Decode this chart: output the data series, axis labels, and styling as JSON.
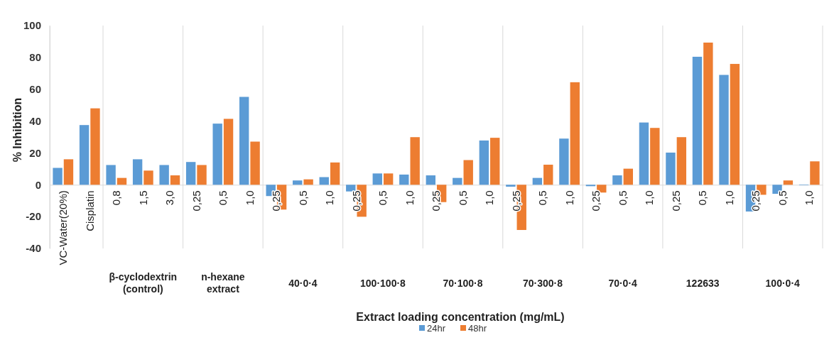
{
  "chart_data": {
    "type": "bar",
    "ylabel": "% Inhibition",
    "xlabel": "Extract loading concentration (mg/mL)",
    "categories": [
      "VC-Water(20%)",
      "Cisplatin",
      "0,8",
      "1,5",
      "3,0",
      "0,25",
      "0,5",
      "1,0",
      "0,25",
      "0,5",
      "1,0",
      "0,25",
      "0,5",
      "1,0",
      "0,25",
      "0,5",
      "1,0",
      "0,25",
      "0,5",
      "1,0",
      "0,25",
      "0,5",
      "1,0",
      "0,25",
      "0,5",
      "1,0",
      "0,25",
      "0,5",
      "1,0"
    ],
    "series": [
      {
        "name": "24hr",
        "color": "#5b9bd5",
        "values": [
          10.6,
          37.5,
          12.4,
          16,
          12.4,
          14.3,
          38.4,
          55.2,
          -7.1,
          2.7,
          4.8,
          -4.2,
          7.1,
          6.4,
          5.9,
          4.3,
          27.8,
          -1.2,
          4.3,
          29,
          -0.9,
          5.9,
          39.1,
          20.2,
          80.4,
          69,
          -16.8,
          -5.7,
          -0.3
        ]
      },
      {
        "name": "48hr",
        "color": "#ed7d31",
        "values": [
          16,
          48,
          4.3,
          8.9,
          5.9,
          12.4,
          41.4,
          27.1,
          -15.6,
          3.4,
          14,
          -20.1,
          7.1,
          29.9,
          -10.9,
          15.5,
          29.5,
          -28.4,
          12.6,
          64.4,
          -4.9,
          10.1,
          35.7,
          29.9,
          89.3,
          75.9,
          -6.3,
          2.7,
          14.7
        ]
      }
    ],
    "annotations": [
      "β-cyclodextrin (control)",
      "n-hexane extract",
      "40·0·4",
      "100·100·8",
      "70·100·8",
      "70·300·8",
      "70·0·4",
      "122633",
      "100·0·4"
    ],
    "ylim": [
      -40,
      100
    ],
    "yticks": [
      -40,
      -20,
      0,
      20,
      40,
      60,
      80,
      100
    ],
    "legend": "bottom"
  }
}
